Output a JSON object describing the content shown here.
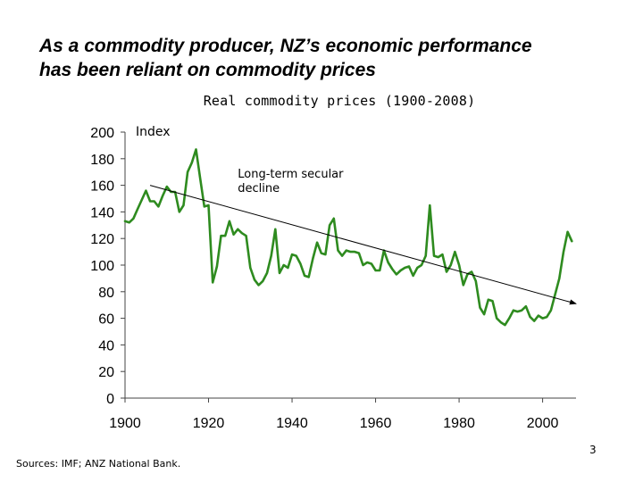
{
  "slide": {
    "headline_line1": "As a commodity producer, NZ’s economic performance",
    "headline_line2": "has been reliant on commodity prices",
    "footer_sources": "Sources:  IMF; ANZ National Bank.",
    "slide_number": "3"
  },
  "chart_data": {
    "type": "line",
    "title": "Real commodity prices (1900-2008)",
    "ylabel": "Index",
    "xlabel": "",
    "xlim": [
      1900,
      2008
    ],
    "ylim": [
      0,
      200
    ],
    "x_ticks": [
      1900,
      1920,
      1940,
      1960,
      1980,
      2000
    ],
    "y_ticks": [
      0,
      20,
      40,
      60,
      80,
      100,
      120,
      140,
      160,
      180,
      200
    ],
    "grid": false,
    "legend": "none",
    "series": [
      {
        "color": "#2e8b1f",
        "points": [
          [
            1900,
            133
          ],
          [
            1901,
            132
          ],
          [
            1902,
            135
          ],
          [
            1903,
            142
          ],
          [
            1904,
            149
          ],
          [
            1905,
            156
          ],
          [
            1906,
            148
          ],
          [
            1907,
            148
          ],
          [
            1908,
            144
          ],
          [
            1909,
            152
          ],
          [
            1910,
            159
          ],
          [
            1911,
            155
          ],
          [
            1912,
            155
          ],
          [
            1913,
            140
          ],
          [
            1914,
            145
          ],
          [
            1915,
            170
          ],
          [
            1916,
            177
          ],
          [
            1917,
            187
          ],
          [
            1918,
            165
          ],
          [
            1919,
            144
          ],
          [
            1920,
            145
          ],
          [
            1921,
            87
          ],
          [
            1922,
            99
          ],
          [
            1923,
            122
          ],
          [
            1924,
            122
          ],
          [
            1925,
            133
          ],
          [
            1926,
            123
          ],
          [
            1927,
            127
          ],
          [
            1928,
            124
          ],
          [
            1929,
            122
          ],
          [
            1930,
            98
          ],
          [
            1931,
            89
          ],
          [
            1932,
            85
          ],
          [
            1933,
            88
          ],
          [
            1934,
            94
          ],
          [
            1935,
            107
          ],
          [
            1936,
            127
          ],
          [
            1937,
            94
          ],
          [
            1938,
            100
          ],
          [
            1939,
            98
          ],
          [
            1940,
            108
          ],
          [
            1941,
            107
          ],
          [
            1942,
            101
          ],
          [
            1943,
            92
          ],
          [
            1944,
            91
          ],
          [
            1945,
            105
          ],
          [
            1946,
            117
          ],
          [
            1947,
            109
          ],
          [
            1948,
            108
          ],
          [
            1949,
            130
          ],
          [
            1950,
            135
          ],
          [
            1951,
            111
          ],
          [
            1952,
            107
          ],
          [
            1953,
            111
          ],
          [
            1954,
            110
          ],
          [
            1955,
            110
          ],
          [
            1956,
            109
          ],
          [
            1957,
            100
          ],
          [
            1958,
            102
          ],
          [
            1959,
            101
          ],
          [
            1960,
            96
          ],
          [
            1961,
            96
          ],
          [
            1962,
            111
          ],
          [
            1963,
            102
          ],
          [
            1964,
            97
          ],
          [
            1965,
            93
          ],
          [
            1966,
            96
          ],
          [
            1967,
            98
          ],
          [
            1968,
            99
          ],
          [
            1969,
            92
          ],
          [
            1970,
            98
          ],
          [
            1971,
            100
          ],
          [
            1972,
            107
          ],
          [
            1973,
            145
          ],
          [
            1974,
            107
          ],
          [
            1975,
            106
          ],
          [
            1976,
            108
          ],
          [
            1977,
            95
          ],
          [
            1978,
            100
          ],
          [
            1979,
            110
          ],
          [
            1980,
            100
          ],
          [
            1981,
            85
          ],
          [
            1982,
            93
          ],
          [
            1983,
            95
          ],
          [
            1984,
            88
          ],
          [
            1985,
            68
          ],
          [
            1986,
            63
          ],
          [
            1987,
            74
          ],
          [
            1988,
            73
          ],
          [
            1989,
            60
          ],
          [
            1990,
            57
          ],
          [
            1991,
            55
          ],
          [
            1992,
            60
          ],
          [
            1993,
            66
          ],
          [
            1994,
            65
          ],
          [
            1995,
            66
          ],
          [
            1996,
            69
          ],
          [
            1997,
            61
          ],
          [
            1998,
            58
          ],
          [
            1999,
            62
          ],
          [
            2000,
            60
          ],
          [
            2001,
            61
          ],
          [
            2002,
            66
          ],
          [
            2003,
            78
          ],
          [
            2004,
            90
          ],
          [
            2005,
            110
          ],
          [
            2006,
            125
          ],
          [
            2007,
            118
          ]
        ]
      }
    ],
    "annotations": [
      {
        "text_line1": "Long-term secular",
        "text_line2": "decline",
        "x": 1927,
        "y": 163
      }
    ],
    "trend_arrow": {
      "from": [
        1906,
        160
      ],
      "to": [
        2008,
        71
      ]
    }
  }
}
